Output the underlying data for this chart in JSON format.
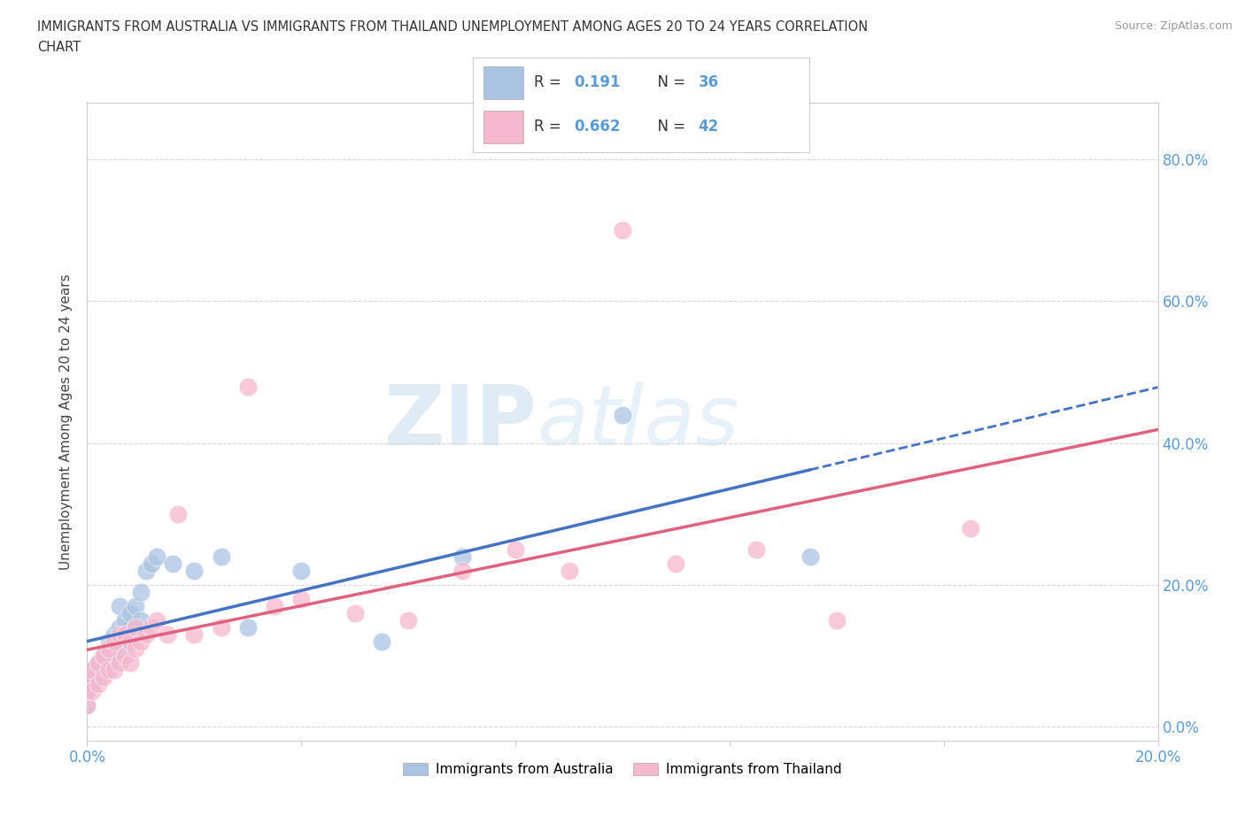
{
  "title_line1": "IMMIGRANTS FROM AUSTRALIA VS IMMIGRANTS FROM THAILAND UNEMPLOYMENT AMONG AGES 20 TO 24 YEARS CORRELATION",
  "title_line2": "CHART",
  "source_text": "Source: ZipAtlas.com",
  "ylabel": "Unemployment Among Ages 20 to 24 years",
  "xlim": [
    0.0,
    0.2
  ],
  "ylim": [
    -0.02,
    0.88
  ],
  "r_australia": "0.191",
  "n_australia": "36",
  "r_thailand": "0.662",
  "n_thailand": "42",
  "color_australia": "#aac4e2",
  "color_thailand": "#f5b8ce",
  "line_color_australia": "#4472c4",
  "line_color_thailand": "#e06080",
  "legend_australia": "Immigrants from Australia",
  "legend_thailand": "Immigrants from Thailand",
  "australia_x": [
    0.0,
    0.0,
    0.0,
    0.001,
    0.001,
    0.002,
    0.002,
    0.003,
    0.003,
    0.004,
    0.004,
    0.005,
    0.005,
    0.006,
    0.006,
    0.006,
    0.007,
    0.007,
    0.008,
    0.008,
    0.009,
    0.009,
    0.01,
    0.01,
    0.011,
    0.012,
    0.013,
    0.016,
    0.02,
    0.025,
    0.03,
    0.04,
    0.055,
    0.07,
    0.1,
    0.135
  ],
  "australia_y": [
    0.03,
    0.05,
    0.07,
    0.06,
    0.08,
    0.07,
    0.09,
    0.08,
    0.1,
    0.09,
    0.12,
    0.1,
    0.13,
    0.11,
    0.14,
    0.17,
    0.12,
    0.15,
    0.13,
    0.16,
    0.14,
    0.17,
    0.15,
    0.19,
    0.22,
    0.23,
    0.24,
    0.23,
    0.22,
    0.24,
    0.14,
    0.22,
    0.12,
    0.24,
    0.44,
    0.24
  ],
  "thailand_x": [
    0.0,
    0.0,
    0.0,
    0.001,
    0.001,
    0.002,
    0.002,
    0.003,
    0.003,
    0.004,
    0.004,
    0.005,
    0.005,
    0.006,
    0.006,
    0.007,
    0.007,
    0.008,
    0.008,
    0.009,
    0.009,
    0.01,
    0.011,
    0.012,
    0.013,
    0.015,
    0.017,
    0.02,
    0.025,
    0.03,
    0.035,
    0.04,
    0.05,
    0.06,
    0.07,
    0.08,
    0.09,
    0.1,
    0.11,
    0.125,
    0.14,
    0.165
  ],
  "thailand_y": [
    0.03,
    0.05,
    0.07,
    0.05,
    0.08,
    0.06,
    0.09,
    0.07,
    0.1,
    0.08,
    0.11,
    0.08,
    0.12,
    0.09,
    0.13,
    0.1,
    0.13,
    0.09,
    0.12,
    0.11,
    0.14,
    0.12,
    0.13,
    0.14,
    0.15,
    0.13,
    0.3,
    0.13,
    0.14,
    0.48,
    0.17,
    0.18,
    0.16,
    0.15,
    0.22,
    0.25,
    0.22,
    0.7,
    0.23,
    0.25,
    0.15,
    0.28
  ],
  "watermark_zip": "ZIP",
  "watermark_atlas": "atlas",
  "background_color": "#ffffff",
  "grid_color": "#d8d8d8",
  "tick_color": "#5b9bd5",
  "right_yticks": [
    0.0,
    0.2,
    0.4,
    0.6,
    0.8
  ],
  "right_ytick_labels": [
    "0.0%",
    "20.0%",
    "40.0%",
    "60.0%",
    "80.0%"
  ]
}
